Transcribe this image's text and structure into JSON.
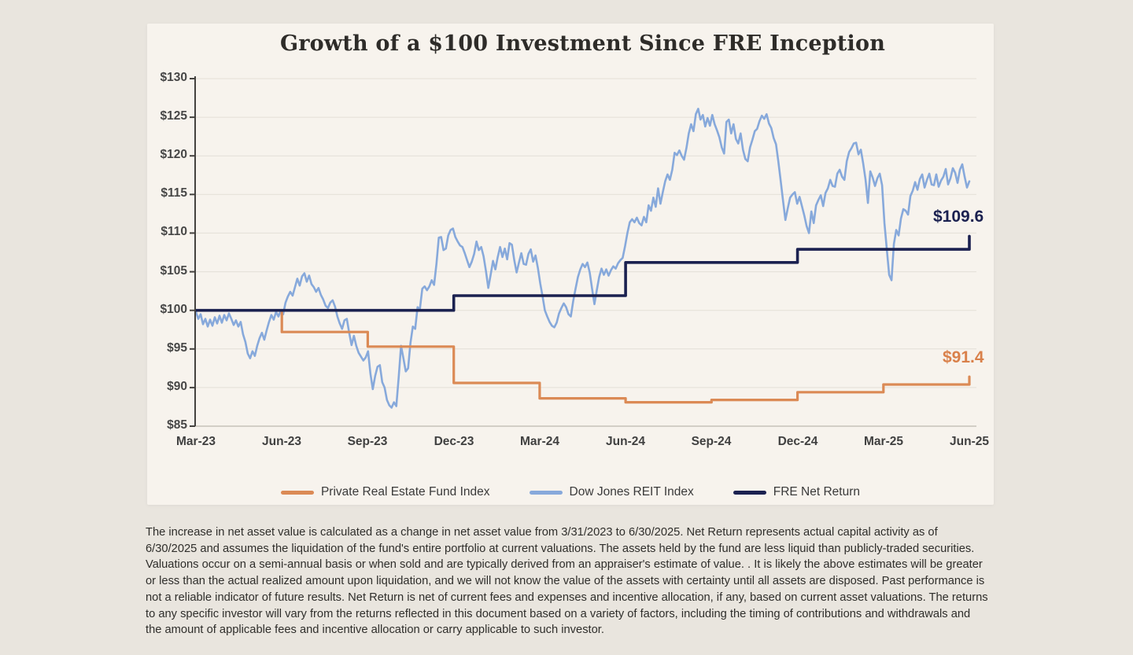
{
  "page": {
    "background_color": "#e9e5de",
    "card_background_color": "#f7f3ed"
  },
  "chart_data": {
    "type": "line",
    "title": "Growth of a $100 Investment Since FRE Inception",
    "xlabel": "",
    "ylabel": "",
    "ylim": [
      85,
      130
    ],
    "y_tick_step": 5,
    "y_tick_labels": [
      "$130",
      "$125",
      "$120",
      "$115",
      "$110",
      "$105",
      "$100",
      "$95",
      "$90",
      "$85"
    ],
    "x_ticks": [
      "Mar-23",
      "Jun-23",
      "Sep-23",
      "Dec-23",
      "Mar-24",
      "Jun-24",
      "Sep-24",
      "Dec-24",
      "Mar-25",
      "Jun-25"
    ],
    "x_range_months": [
      0,
      27
    ],
    "grid": "horizontal",
    "legend_position": "bottom",
    "series": [
      {
        "name": "Private Real Estate Fund Index",
        "style": "step",
        "color": "#db8a55",
        "note": "value i applies from quarter tick i to tick i+1; vertical step at each tick",
        "values_by_quarter": [
          100,
          97.2,
          95.3,
          90.6,
          88.6,
          88.1,
          88.4,
          89.4,
          90.4,
          91.4
        ],
        "end_label": "$91.4",
        "end_label_color": "#d9804a"
      },
      {
        "name": "Dow Jones REIT Index",
        "style": "line",
        "color": "#87a9db",
        "sampling": {
          "t_start_months": 0,
          "t_end_months": 27,
          "n": 329
        },
        "values": [
          99.8,
          98.9,
          99.5,
          98.2,
          98.9,
          97.9,
          98.8,
          98.0,
          99.1,
          98.3,
          99.3,
          98.4,
          99.4,
          98.7,
          99.6,
          98.9,
          98.1,
          98.7,
          97.9,
          98.5,
          96.9,
          95.9,
          94.4,
          93.8,
          94.7,
          94.1,
          95.4,
          96.4,
          97.1,
          96.2,
          97.4,
          98.5,
          99.4,
          98.8,
          99.8,
          99.2,
          100.0,
          99.5,
          101.0,
          101.8,
          102.4,
          101.9,
          103.0,
          104.1,
          103.2,
          104.4,
          104.8,
          103.7,
          104.5,
          103.4,
          103.0,
          102.4,
          102.9,
          102.0,
          101.4,
          100.6,
          100.3,
          101.0,
          101.3,
          100.5,
          99.2,
          98.3,
          97.6,
          98.7,
          98.9,
          97.1,
          95.5,
          96.7,
          95.4,
          94.5,
          94.0,
          93.5,
          93.9,
          94.7,
          91.8,
          89.8,
          91.5,
          92.7,
          92.9,
          90.7,
          90.0,
          88.4,
          87.7,
          87.4,
          88.1,
          87.6,
          91.3,
          95.4,
          93.8,
          92.1,
          92.5,
          95.8,
          97.9,
          97.6,
          100.4,
          100.2,
          102.8,
          103.1,
          102.6,
          103.1,
          103.9,
          103.3,
          106.0,
          109.4,
          109.5,
          107.8,
          108.0,
          109.7,
          110.4,
          110.6,
          109.5,
          108.9,
          108.4,
          108.2,
          107.4,
          106.5,
          105.6,
          106.3,
          107.3,
          108.9,
          107.8,
          108.2,
          107.0,
          105.1,
          102.9,
          104.6,
          106.4,
          105.3,
          106.9,
          108.2,
          106.9,
          108.0,
          106.6,
          108.7,
          108.5,
          106.5,
          104.9,
          106.2,
          107.4,
          106.0,
          105.9,
          107.3,
          107.9,
          106.3,
          107.1,
          105.5,
          103.5,
          101.8,
          100.0,
          99.2,
          98.5,
          98.0,
          97.8,
          98.4,
          99.6,
          100.3,
          100.9,
          100.4,
          99.5,
          99.2,
          101.2,
          102.8,
          104.3,
          105.3,
          106.0,
          105.6,
          106.2,
          104.9,
          102.8,
          100.8,
          102.6,
          104.3,
          105.4,
          104.6,
          105.3,
          104.5,
          105.2,
          105.7,
          105.4,
          106.1,
          106.5,
          106.8,
          108.3,
          110.0,
          111.4,
          111.8,
          111.4,
          112.0,
          111.3,
          111.0,
          112.1,
          111.4,
          113.6,
          112.9,
          114.6,
          113.4,
          115.8,
          113.8,
          115.3,
          116.7,
          117.6,
          116.9,
          118.2,
          120.4,
          120.1,
          120.7,
          120.0,
          119.5,
          121.0,
          122.9,
          124.1,
          123.2,
          125.4,
          126.1,
          124.7,
          125.3,
          123.8,
          124.9,
          123.9,
          125.3,
          124.1,
          123.3,
          122.4,
          121.1,
          120.3,
          124.4,
          124.7,
          122.9,
          124.1,
          122.2,
          121.6,
          122.9,
          120.8,
          119.6,
          119.3,
          121.1,
          122.1,
          123.2,
          123.5,
          124.5,
          125.2,
          124.8,
          125.4,
          124.2,
          123.6,
          122.3,
          121.5,
          119.3,
          116.8,
          114.2,
          111.7,
          113.2,
          114.6,
          115.0,
          115.3,
          113.8,
          114.7,
          113.5,
          112.3,
          110.9,
          110.0,
          112.8,
          111.3,
          113.6,
          114.3,
          114.9,
          113.5,
          115.2,
          115.8,
          116.9,
          116.1,
          116.0,
          117.7,
          118.2,
          117.3,
          116.9,
          119.3,
          120.5,
          121.0,
          121.6,
          121.7,
          120.2,
          120.8,
          119.0,
          116.9,
          113.9,
          118.0,
          117.2,
          116.1,
          117.1,
          117.7,
          116.2,
          111.3,
          107.9,
          104.6,
          103.9,
          108.6,
          110.4,
          109.7,
          111.9,
          113.1,
          112.9,
          112.4,
          114.8,
          115.5,
          116.6,
          115.6,
          117.0,
          117.6,
          115.9,
          116.9,
          117.7,
          116.3,
          116.2,
          117.6,
          116.0,
          116.8,
          117.3,
          118.3,
          116.3,
          117.1,
          118.4,
          117.8,
          116.5,
          118.2,
          118.9,
          117.3,
          115.9,
          116.7
        ]
      },
      {
        "name": "FRE Net Return",
        "style": "step",
        "color": "#1b2150",
        "note": "semi-annual valuation steps at Dec-23, Jun-24, Dec-24 and final mark at Jun-25",
        "values_by_quarter": [
          100,
          100,
          100,
          101.9,
          101.9,
          106.2,
          106.2,
          107.9,
          107.9,
          109.6
        ],
        "end_label": "$109.6",
        "end_label_color": "#1b2150"
      }
    ]
  },
  "disclaimer": "The increase in net asset value is calculated as a change in net asset value from 3/31/2023 to 6/30/2025. Net Return represents actual capital activity as of 6/30/2025 and assumes the liquidation of the fund's entire portfolio at current valuations. The assets held by the fund are less liquid than publicly-traded securities. Valuations occur on a semi-annual basis or when sold and are typically derived from an appraiser's estimate of value. . It is likely the above estimates will be greater or less than the actual realized amount upon liquidation, and we will not know the value of the assets with certainty until all assets are disposed. Past performance is not a reliable indicator of future results. Net Return is net of current fees and expenses and incentive allocation, if any, based on current asset valuations. The returns to any specific investor will vary from the returns reflected in this document based on a variety of factors, including the timing of contributions and withdrawals and the amount of applicable fees and incentive allocation or carry applicable to such investor."
}
